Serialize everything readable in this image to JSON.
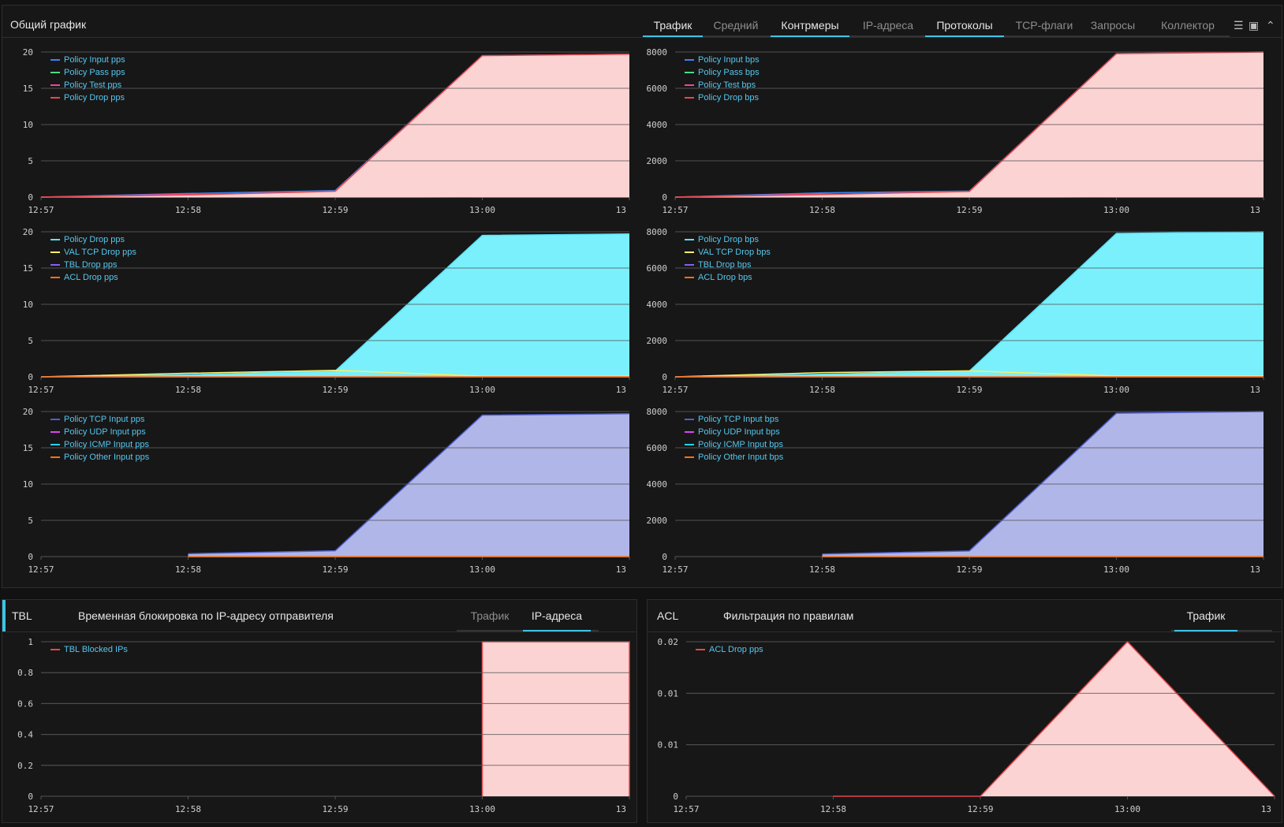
{
  "main": {
    "title": "Общий график",
    "tabs": [
      {
        "label": "Трафик",
        "active": true
      },
      {
        "label": "Средний",
        "active": false
      },
      {
        "label": "Контрмеры",
        "active": true
      },
      {
        "label": "IP-адреса",
        "active": false
      },
      {
        "label": "Протоколы",
        "active": true
      },
      {
        "label": "TCP-флаги",
        "active": false
      },
      {
        "label": "Запросы",
        "active": false
      },
      {
        "label": "Коллектор",
        "active": false
      }
    ],
    "icons": [
      "list-icon",
      "window-icon",
      "chevron-up-icon"
    ]
  },
  "tbl": {
    "label": "TBL",
    "title": "Временная блокировка по IP-адресу отправителя",
    "tabs": [
      {
        "label": "Трафик",
        "active": false
      },
      {
        "label": "IP-адреса",
        "active": true
      }
    ]
  },
  "acl": {
    "label": "ACL",
    "title": "Фильтрация по правилам",
    "tabs": [
      {
        "label": "Трафик",
        "active": true
      }
    ]
  },
  "colors": {
    "accent": "#3fc3e6",
    "red": "#e8474c",
    "cyan": "#59e3f6",
    "lavender": "#8f97e6"
  },
  "chart_data": [
    {
      "type": "area",
      "id": "c1",
      "x": [
        "12:57",
        "12:58",
        "12:59",
        "13:00",
        "13"
      ],
      "yticks": [
        "0",
        "5",
        "10",
        "15",
        "20"
      ],
      "ylim": [
        0,
        20
      ],
      "grid": true,
      "series": [
        {
          "name": "Policy Input pps",
          "color": "#3b82f6",
          "values": [
            0,
            0.5,
            0.9,
            19.5,
            19.7
          ]
        },
        {
          "name": "Policy Pass pps",
          "color": "#4ade80",
          "values": [
            0,
            0,
            0,
            0,
            0
          ]
        },
        {
          "name": "Policy Test pps",
          "color": "#ec4899",
          "values": [
            0,
            0.4,
            0.2,
            0,
            0
          ]
        },
        {
          "name": "Policy Drop pps",
          "color": "#e8474c",
          "values": [
            0,
            0.3,
            0.8,
            19.5,
            19.7
          ],
          "fill": "#fcd3d3"
        }
      ]
    },
    {
      "type": "area",
      "id": "c2",
      "x": [
        "12:57",
        "12:58",
        "12:59",
        "13:00",
        "13"
      ],
      "yticks": [
        "0",
        "2000",
        "4000",
        "6000",
        "8000"
      ],
      "ylim": [
        0,
        8500
      ],
      "grid": true,
      "series": [
        {
          "name": "Policy Input bps",
          "color": "#3b82f6",
          "values": [
            0,
            250,
            350,
            8400,
            8500
          ]
        },
        {
          "name": "Policy Pass bps",
          "color": "#4ade80",
          "values": [
            0,
            0,
            0,
            0,
            0
          ]
        },
        {
          "name": "Policy Test bps",
          "color": "#ec4899",
          "values": [
            0,
            180,
            90,
            0,
            0
          ]
        },
        {
          "name": "Policy Drop bps",
          "color": "#e8474c",
          "values": [
            0,
            150,
            330,
            8400,
            8500
          ],
          "fill": "#fcd3d3"
        }
      ]
    },
    {
      "type": "area",
      "id": "c3",
      "x": [
        "12:57",
        "12:58",
        "12:59",
        "13:00",
        "13"
      ],
      "yticks": [
        "0",
        "5",
        "10",
        "15",
        "20"
      ],
      "ylim": [
        0,
        20
      ],
      "grid": true,
      "series": [
        {
          "name": "Policy Drop pps",
          "color": "#59e3f6",
          "values": [
            0,
            0.3,
            0.8,
            19.5,
            19.7
          ],
          "fill": "#7af0fd"
        },
        {
          "name": "VAL TCP Drop pps",
          "color": "#f5f06a",
          "values": [
            0,
            0.5,
            0.9,
            0.1,
            0.1
          ]
        },
        {
          "name": "TBL Drop pps",
          "color": "#8b5cf6",
          "values": [
            0,
            0,
            0,
            0,
            0
          ]
        },
        {
          "name": "ACL Drop pps",
          "color": "#f97316",
          "values": [
            0,
            0,
            0,
            0,
            0
          ]
        }
      ]
    },
    {
      "type": "area",
      "id": "c4",
      "x": [
        "12:57",
        "12:58",
        "12:59",
        "13:00",
        "13"
      ],
      "yticks": [
        "0",
        "2000",
        "4000",
        "6000",
        "8000"
      ],
      "ylim": [
        0,
        8500
      ],
      "grid": true,
      "series": [
        {
          "name": "Policy Drop bps",
          "color": "#59e3f6",
          "values": [
            0,
            150,
            330,
            8400,
            8500
          ],
          "fill": "#7af0fd"
        },
        {
          "name": "VAL TCP Drop bps",
          "color": "#f5f06a",
          "values": [
            0,
            250,
            350,
            50,
            50
          ]
        },
        {
          "name": "TBL Drop bps",
          "color": "#8b5cf6",
          "values": [
            0,
            0,
            0,
            0,
            0
          ]
        },
        {
          "name": "ACL Drop bps",
          "color": "#f97316",
          "values": [
            0,
            0,
            0,
            0,
            0
          ]
        }
      ]
    },
    {
      "type": "area",
      "id": "c5",
      "x": [
        "12:57",
        "12:58",
        "12:59",
        "13:00",
        "13"
      ],
      "yticks": [
        "0",
        "5",
        "10",
        "15",
        "20"
      ],
      "ylim": [
        0,
        20
      ],
      "grid": true,
      "series": [
        {
          "name": "Policy TCP Input pps",
          "color": "#4f5fd0",
          "values": [
            null,
            0.4,
            0.8,
            19.5,
            19.7
          ],
          "fill": "#b1b6e8"
        },
        {
          "name": "Policy UDP Input pps",
          "color": "#d946ef",
          "values": [
            null,
            0,
            0,
            0,
            0
          ]
        },
        {
          "name": "Policy ICMP Input pps",
          "color": "#22d3ee",
          "values": [
            null,
            0,
            0,
            0,
            0
          ]
        },
        {
          "name": "Policy Other Input pps",
          "color": "#f97316",
          "values": [
            null,
            0,
            0,
            0,
            0
          ]
        }
      ]
    },
    {
      "type": "area",
      "id": "c6",
      "x": [
        "12:57",
        "12:58",
        "12:59",
        "13:00",
        "13"
      ],
      "yticks": [
        "0",
        "2000",
        "4000",
        "6000",
        "8000"
      ],
      "ylim": [
        0,
        8500
      ],
      "grid": true,
      "series": [
        {
          "name": "Policy TCP Input bps",
          "color": "#4f5fd0",
          "values": [
            null,
            150,
            330,
            8400,
            8500
          ],
          "fill": "#b1b6e8"
        },
        {
          "name": "Policy UDP Input bps",
          "color": "#d946ef",
          "values": [
            null,
            0,
            0,
            0,
            0
          ]
        },
        {
          "name": "Policy ICMP Input bps",
          "color": "#22d3ee",
          "values": [
            null,
            0,
            0,
            0,
            0
          ]
        },
        {
          "name": "Policy Other Input bps",
          "color": "#f97316",
          "values": [
            null,
            0,
            0,
            0,
            0
          ]
        }
      ]
    },
    {
      "type": "area",
      "id": "c7",
      "x": [
        "12:57",
        "12:58",
        "12:59",
        "13:00",
        "13"
      ],
      "yticks": [
        "0",
        "0.2",
        "0.4",
        "0.6",
        "0.8",
        "1"
      ],
      "ylim": [
        0,
        1
      ],
      "grid": true,
      "step": true,
      "series": [
        {
          "name": "TBL Blocked IPs",
          "color": "#e8474c",
          "values": [
            null,
            null,
            null,
            1,
            1
          ],
          "fill": "#fcd3d3"
        }
      ]
    },
    {
      "type": "area",
      "id": "c8",
      "x": [
        "12:57",
        "12:58",
        "12:59",
        "13:00",
        "13"
      ],
      "yticks": [
        "0",
        "0.01",
        "0.01",
        "0.02"
      ],
      "ylim": [
        0,
        0.033
      ],
      "grid": true,
      "series": [
        {
          "name": "ACL Drop pps",
          "color": "#e8474c",
          "values": [
            null,
            0,
            0,
            0.033,
            0
          ],
          "fill": "#fcd3d3"
        }
      ]
    }
  ]
}
